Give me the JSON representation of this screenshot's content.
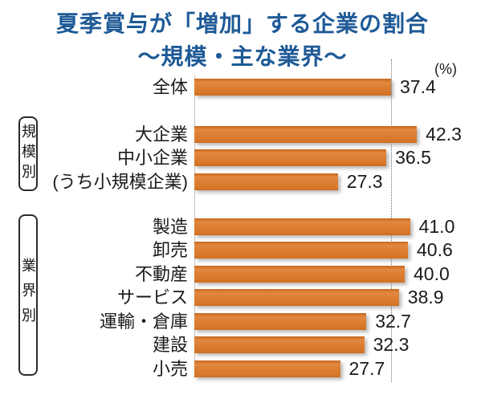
{
  "title": {
    "line1": "夏季賞与が「増加」する企業の割合",
    "line2": "～規模・主な業界～"
  },
  "axis": {
    "unit_label": "(%)"
  },
  "group_labels": {
    "scale": "規模別",
    "industry": "業界別"
  },
  "colors": {
    "title_blue": "#1E5A96",
    "bar_orange": "#D9792B",
    "reference_line_gray": "#6F6F6F",
    "text_black": "#1A1A1A"
  },
  "chart_data": {
    "type": "bar",
    "orientation": "horizontal",
    "title": "夏季賞与が「増加」する企業の割合 ～規模・主な業界～",
    "xlabel": "(%)",
    "ylabel": "",
    "unit": "%",
    "xlim": [
      0,
      45
    ],
    "grid": false,
    "legend": "none",
    "reference_line_value": 37.4,
    "categories": [
      "全体",
      "大企業",
      "中小企業",
      "(うち小規模企業)",
      "製造",
      "卸売",
      "不動産",
      "サービス",
      "運輸・倉庫",
      "建設",
      "小売"
    ],
    "values": [
      37.4,
      42.3,
      36.5,
      27.3,
      41.0,
      40.6,
      40.0,
      38.9,
      32.7,
      32.3,
      27.7
    ],
    "rows": [
      {
        "label": "全体",
        "value": 37.4,
        "display": "37.4",
        "group": ""
      },
      {
        "label": "大企業",
        "value": 42.3,
        "display": "42.3",
        "group": "規模別"
      },
      {
        "label": "中小企業",
        "value": 36.5,
        "display": "36.5",
        "group": "規模別"
      },
      {
        "label": "(うち小規模企業)",
        "value": 27.3,
        "display": "27.3",
        "group": "規模別"
      },
      {
        "label": "製造",
        "value": 41.0,
        "display": "41.0",
        "group": "業界別"
      },
      {
        "label": "卸売",
        "value": 40.6,
        "display": "40.6",
        "group": "業界別"
      },
      {
        "label": "不動産",
        "value": 40.0,
        "display": "40.0",
        "group": "業界別"
      },
      {
        "label": "サービス",
        "value": 38.9,
        "display": "38.9",
        "group": "業界別"
      },
      {
        "label": "運輸・倉庫",
        "value": 32.7,
        "display": "32.7",
        "group": "業界別"
      },
      {
        "label": "建設",
        "value": 32.3,
        "display": "32.3",
        "group": "業界別"
      },
      {
        "label": "小売",
        "value": 27.7,
        "display": "27.7",
        "group": "業界別"
      }
    ]
  }
}
